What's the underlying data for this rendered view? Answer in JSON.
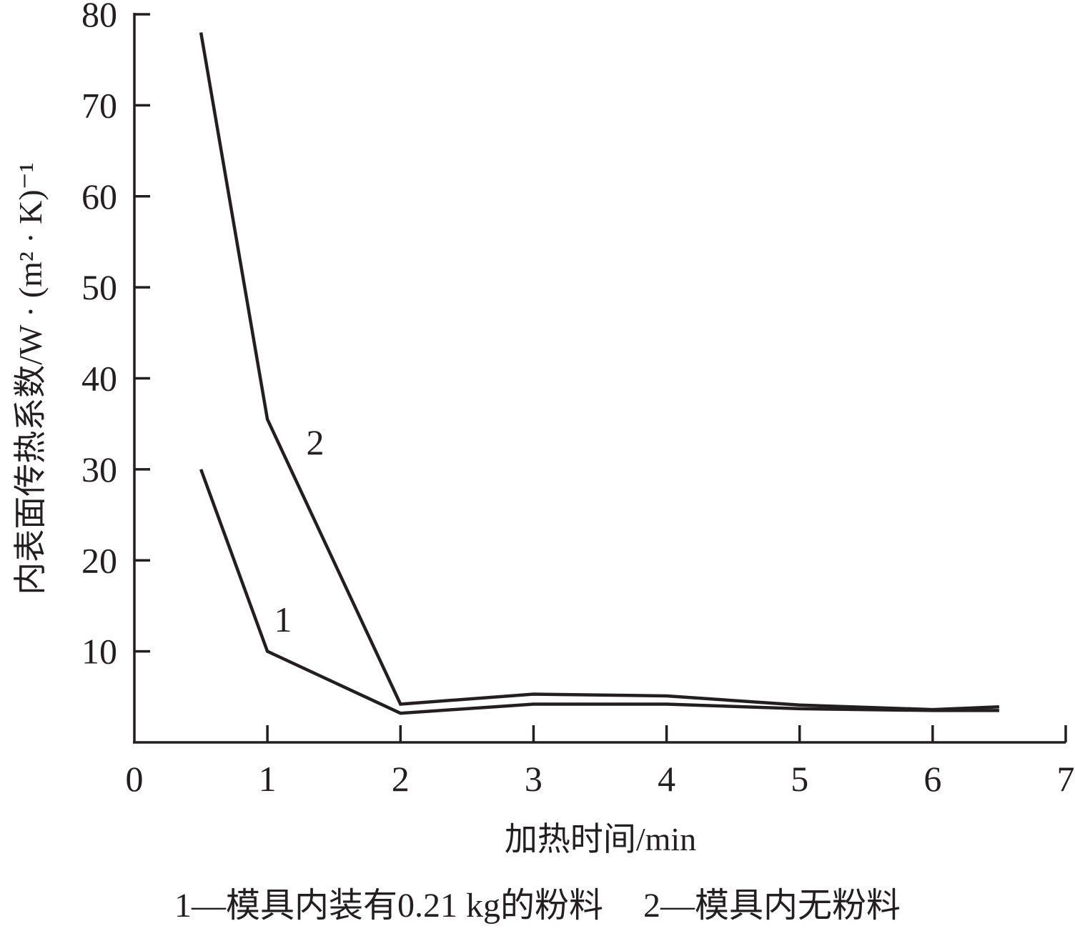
{
  "chart_data": {
    "type": "line",
    "xlabel": "加热时间/min",
    "ylabel": "内表面传热系数/W · (m² · K)⁻¹",
    "xlim": [
      0,
      7
    ],
    "ylim": [
      0,
      80
    ],
    "x_ticks": [
      "0",
      "1",
      "2",
      "3",
      "4",
      "5",
      "6",
      "7"
    ],
    "y_ticks": [
      "10",
      "20",
      "30",
      "40",
      "50",
      "60",
      "70",
      "80"
    ],
    "grid": false,
    "series": [
      {
        "name": "1",
        "x": [
          0.5,
          1,
          2,
          3,
          4,
          5,
          6,
          6.5
        ],
        "y": [
          30,
          10,
          3.2,
          4.2,
          4.2,
          3.7,
          3.5,
          3.5
        ]
      },
      {
        "name": "2",
        "x": [
          0.5,
          1,
          2,
          3,
          4,
          5,
          6,
          6.5
        ],
        "y": [
          78,
          35.5,
          4.2,
          5.3,
          5.1,
          4.1,
          3.6,
          3.9
        ]
      }
    ],
    "legend": {
      "item1": "1—模具内装有0.21 kg的粉料",
      "item2": "2—模具内无粉料"
    },
    "colors": {
      "line": "#231f20",
      "background": "#ffffff"
    }
  }
}
